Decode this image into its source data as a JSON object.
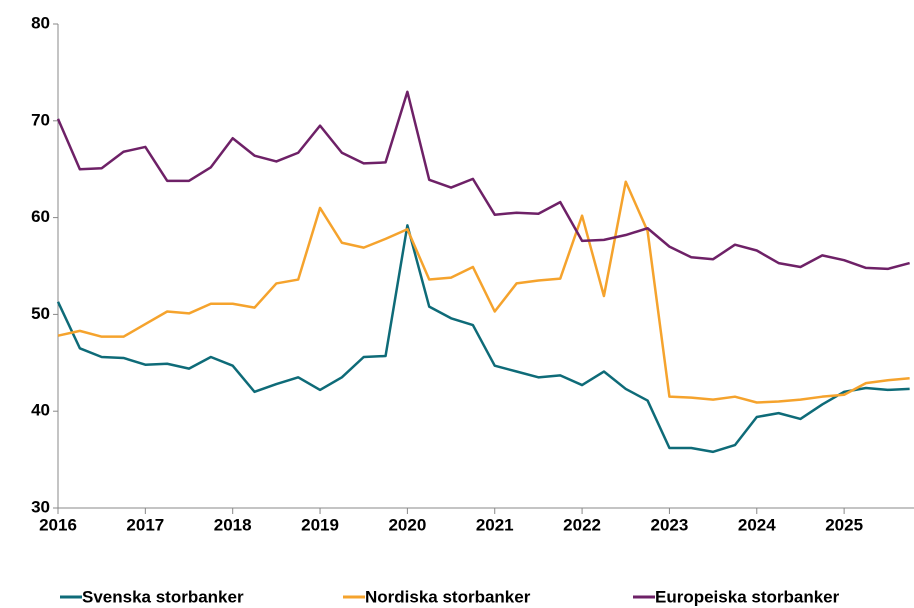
{
  "chart_data": {
    "type": "line",
    "x": [
      2016,
      2016.25,
      2016.5,
      2016.75,
      2017,
      2017.25,
      2017.5,
      2017.75,
      2018,
      2018.25,
      2018.5,
      2018.75,
      2019,
      2019.25,
      2019.5,
      2019.75,
      2020,
      2020.25,
      2020.5,
      2020.75,
      2021,
      2021.25,
      2021.5,
      2021.75,
      2022,
      2022.25,
      2022.5,
      2022.75,
      2023,
      2023.25,
      2023.5,
      2023.75,
      2024,
      2024.25,
      2024.5,
      2024.75,
      2025,
      2025.25,
      2025.5,
      2025.75
    ],
    "series": [
      {
        "name": "Svenska storbanker",
        "color": "#0e6b78",
        "values": [
          51.3,
          46.5,
          45.6,
          45.5,
          44.8,
          44.9,
          44.4,
          45.6,
          44.7,
          42.0,
          42.8,
          43.5,
          42.2,
          43.5,
          45.6,
          45.7,
          59.2,
          50.8,
          49.6,
          48.9,
          44.7,
          44.1,
          43.5,
          43.7,
          42.7,
          44.1,
          42.3,
          41.1,
          36.2,
          36.2,
          35.8,
          36.5,
          39.4,
          39.8,
          39.2,
          40.7,
          42.0,
          42.4,
          42.2,
          42.3
        ]
      },
      {
        "name": "Nordiska storbanker",
        "color": "#f5a32d",
        "values": [
          47.8,
          48.3,
          47.7,
          47.7,
          49.0,
          50.3,
          50.1,
          51.1,
          51.1,
          50.7,
          53.2,
          53.6,
          61.0,
          57.4,
          56.9,
          57.8,
          58.8,
          53.6,
          53.8,
          54.9,
          50.3,
          53.2,
          53.5,
          53.7,
          60.2,
          51.9,
          63.7,
          58.6,
          41.5,
          41.4,
          41.2,
          41.5,
          40.9,
          41.0,
          41.2,
          41.5,
          41.7,
          42.9,
          43.2,
          43.4
        ]
      },
      {
        "name": "Europeiska storbanker",
        "color": "#6e2167",
        "values": [
          70.2,
          65.0,
          65.1,
          66.8,
          67.3,
          63.8,
          63.8,
          65.2,
          68.2,
          66.4,
          65.8,
          66.7,
          69.5,
          66.7,
          65.6,
          65.7,
          73.0,
          63.9,
          63.1,
          64.0,
          60.3,
          60.5,
          60.4,
          61.6,
          57.6,
          57.7,
          58.2,
          58.9,
          57.0,
          55.9,
          55.7,
          57.2,
          56.6,
          55.3,
          54.9,
          56.1,
          55.6,
          54.8,
          54.7,
          55.3
        ]
      }
    ],
    "xlim": [
      2016,
      2025.8
    ],
    "xticks": [
      2016,
      2017,
      2018,
      2019,
      2020,
      2021,
      2022,
      2023,
      2024,
      2025
    ],
    "ylim": [
      30,
      80
    ],
    "yticks": [
      30,
      40,
      50,
      60,
      70,
      80
    ],
    "grid": false,
    "legend": "bottom"
  }
}
